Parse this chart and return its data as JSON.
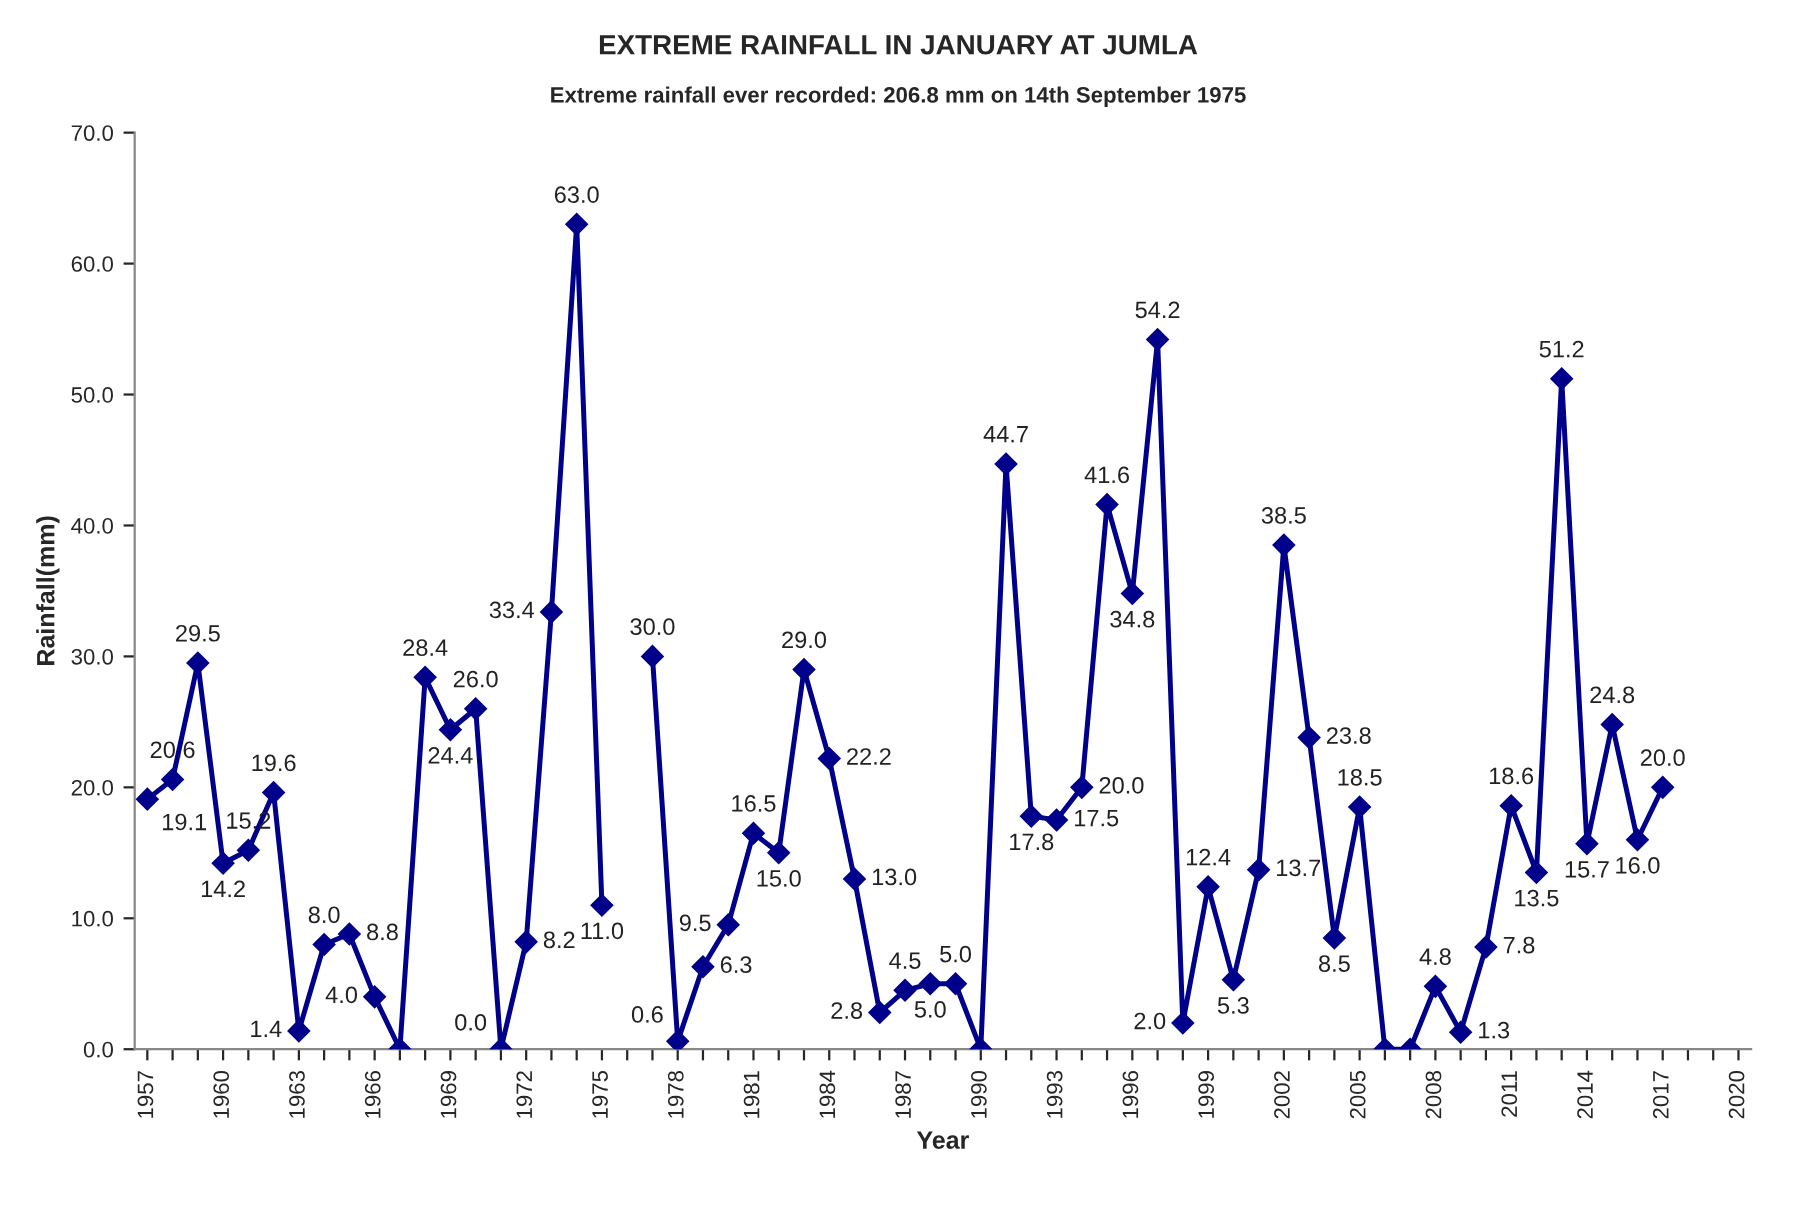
{
  "chart_data": {
    "type": "line",
    "title": "EXTREME RAINFALL IN JANUARY AT JUMLA",
    "subtitle": "Extreme rainfall ever recorded: 206.8 mm on 14th September 1975",
    "xlabel": "Year",
    "ylabel": "Rainfall(mm)",
    "x": [
      1957,
      1958,
      1959,
      1960,
      1961,
      1962,
      1963,
      1964,
      1965,
      1966,
      1967,
      1968,
      1969,
      1970,
      1971,
      1972,
      1973,
      1974,
      1975,
      1976,
      1977,
      1978,
      1979,
      1980,
      1981,
      1982,
      1983,
      1984,
      1985,
      1986,
      1987,
      1988,
      1989,
      1990,
      1991,
      1992,
      1993,
      1994,
      1995,
      1996,
      1997,
      1998,
      1999,
      2000,
      2001,
      2002,
      2003,
      2004,
      2005,
      2006,
      2007,
      2008,
      2009,
      2010,
      2011,
      2012,
      2013,
      2014,
      2015,
      2016,
      2017
    ],
    "series": [
      {
        "color": "#00008b",
        "values": [
          19.1,
          20.6,
          29.5,
          14.2,
          15.2,
          19.6,
          1.4,
          8.0,
          8.8,
          4.0,
          0.0,
          28.4,
          24.4,
          26.0,
          0.0,
          8.2,
          33.4,
          63.0,
          11.0,
          null,
          30.0,
          0.6,
          6.3,
          9.5,
          16.5,
          15.0,
          29.0,
          22.2,
          13.0,
          2.8,
          4.5,
          5.0,
          5.0,
          0.0,
          44.7,
          17.8,
          17.5,
          20.0,
          41.6,
          34.8,
          54.2,
          2.0,
          12.4,
          5.3,
          13.7,
          38.5,
          23.8,
          8.5,
          18.5,
          0.0,
          0.0,
          4.8,
          1.3,
          7.8,
          18.6,
          13.5,
          51.2,
          15.7,
          24.8,
          16.0,
          20.0
        ],
        "value_labels": [
          "19.1",
          "20.6",
          "29.5",
          "14.2",
          "15.2",
          "19.6",
          "1.4",
          "8.0",
          "8.8",
          "4.0",
          null,
          "28.4",
          "24.4",
          "26.0",
          "0.0",
          "8.2",
          "33.4",
          "63.0",
          "11.0",
          null,
          "30.0",
          "0.6",
          "6.3",
          "9.5",
          "16.5",
          "15.0",
          "29.0",
          "22.2",
          "13.0",
          "2.8",
          "4.5",
          "5.0",
          "5.0",
          null,
          "44.7",
          "17.8",
          "17.5",
          "20.0",
          "41.6",
          "34.8",
          "54.2",
          "2.0",
          "12.4",
          "5.3",
          "13.7",
          "38.5",
          "23.8",
          "8.5",
          "18.5",
          null,
          null,
          "4.8",
          "1.3",
          "7.8",
          "18.6",
          "13.5",
          "51.2",
          "15.7",
          "24.8",
          "16.0",
          "20.0"
        ]
      }
    ],
    "marker": "diamond",
    "line_style": "solid",
    "grid": false,
    "legend": false,
    "xlim": [
      1956.5,
      2020.5
    ],
    "xticks": [
      1957,
      {
        "value": 1958,
        "label": null
      },
      {
        "value": 1959,
        "label": null
      },
      1960,
      {
        "value": 1961,
        "label": null
      },
      {
        "value": 1962,
        "label": null
      },
      1963,
      {
        "value": 1964,
        "label": null
      },
      {
        "value": 1965,
        "label": null
      },
      1966,
      {
        "value": 1967,
        "label": null
      },
      {
        "value": 1968,
        "label": null
      },
      1969,
      {
        "value": 1970,
        "label": null
      },
      {
        "value": 1971,
        "label": null
      },
      1972,
      {
        "value": 1973,
        "label": null
      },
      {
        "value": 1974,
        "label": null
      },
      1975,
      {
        "value": 1976,
        "label": null
      },
      {
        "value": 1977,
        "label": null
      },
      1978,
      {
        "value": 1979,
        "label": null
      },
      {
        "value": 1980,
        "label": null
      },
      1981,
      {
        "value": 1982,
        "label": null
      },
      {
        "value": 1983,
        "label": null
      },
      1984,
      {
        "value": 1985,
        "label": null
      },
      {
        "value": 1986,
        "label": null
      },
      1987,
      {
        "value": 1988,
        "label": null
      },
      {
        "value": 1989,
        "label": null
      },
      1990,
      {
        "value": 1991,
        "label": null
      },
      {
        "value": 1992,
        "label": null
      },
      1993,
      {
        "value": 1994,
        "label": null
      },
      {
        "value": 1995,
        "label": null
      },
      1996,
      {
        "value": 1997,
        "label": null
      },
      {
        "value": 1998,
        "label": null
      },
      1999,
      {
        "value": 2000,
        "label": null
      },
      {
        "value": 2001,
        "label": null
      },
      2002,
      {
        "value": 2003,
        "label": null
      },
      {
        "value": 2004,
        "label": null
      },
      2005,
      {
        "value": 2006,
        "label": null
      },
      {
        "value": 2007,
        "label": null
      },
      2008,
      {
        "value": 2009,
        "label": null
      },
      {
        "value": 2010,
        "label": null
      },
      2011,
      {
        "value": 2012,
        "label": null
      },
      {
        "value": 2013,
        "label": null
      },
      2014,
      {
        "value": 2015,
        "label": null
      },
      {
        "value": 2016,
        "label": null
      },
      2017,
      {
        "value": 2018,
        "label": null
      },
      {
        "value": 2019,
        "label": null
      },
      2020
    ],
    "ylim": [
      0,
      70
    ],
    "yticks": [
      {
        "value": 0,
        "label": "0.0"
      },
      {
        "value": 10,
        "label": "10.0"
      },
      {
        "value": 20,
        "label": "20.0"
      },
      {
        "value": 30,
        "label": "30.0"
      },
      {
        "value": 40,
        "label": "40.0"
      },
      {
        "value": 50,
        "label": "50.0"
      },
      {
        "value": 60,
        "label": "60.0"
      },
      {
        "value": 70,
        "label": "70.0"
      }
    ]
  }
}
